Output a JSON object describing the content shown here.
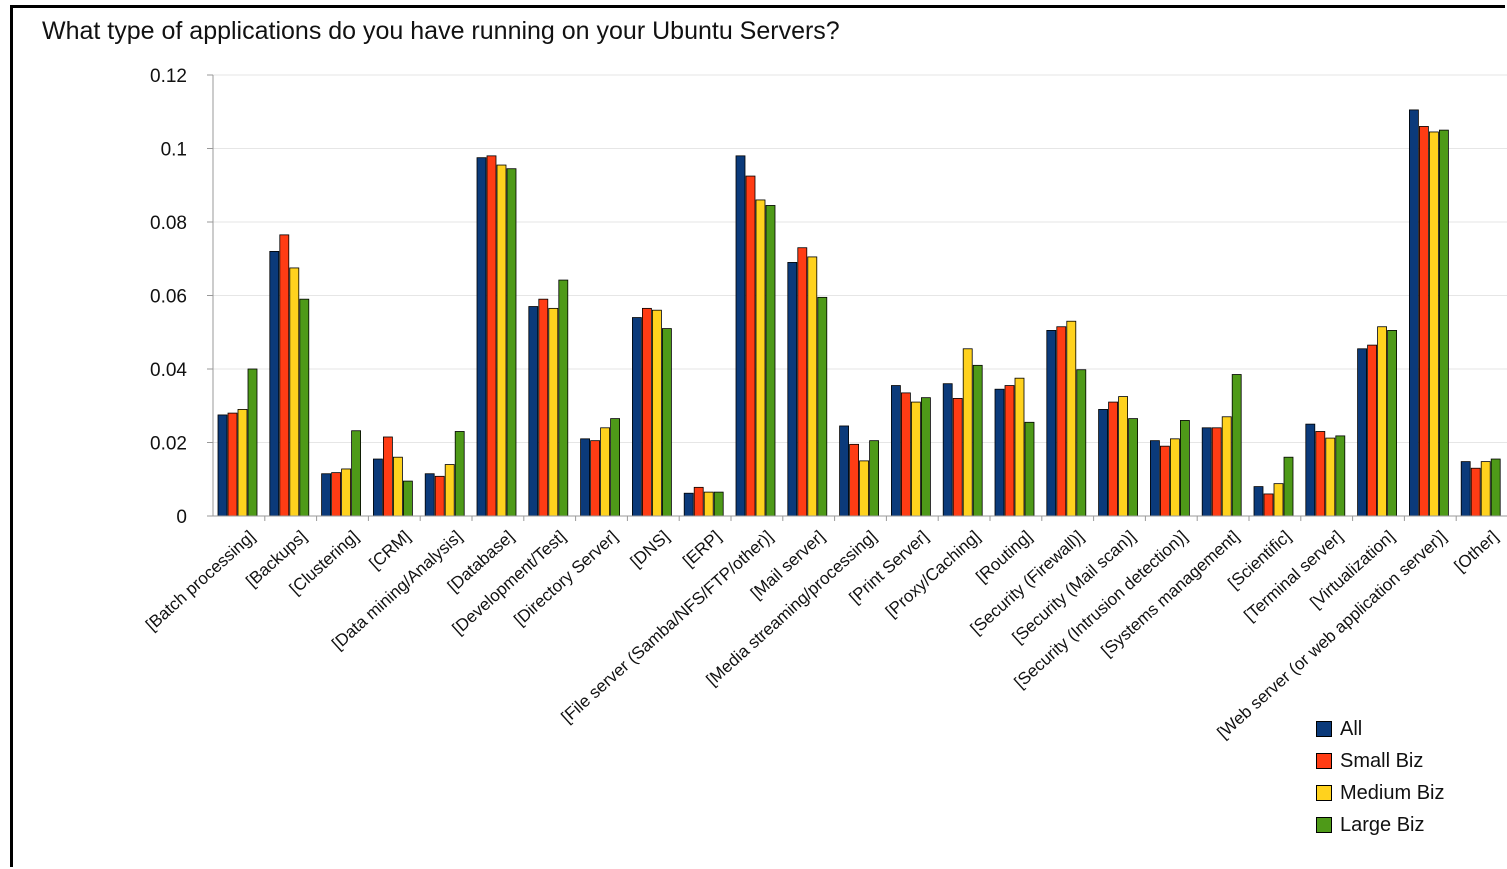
{
  "chart_data": {
    "type": "bar",
    "title": "What type of applications do you have running on your Ubuntu Servers?",
    "xlabel": "",
    "ylabel": "",
    "ylim": [
      0,
      0.12
    ],
    "yticks": [
      "0",
      "0.02",
      "0.04",
      "0.06",
      "0.08",
      "0.1",
      "0.12"
    ],
    "grid": true,
    "legend_position": "bottom-right",
    "categories": [
      "[Batch processing]",
      "[Backups]",
      "[Clustering]",
      "[CRM]",
      "[Data mining/Analysis]",
      "[Database]",
      "[Development/Test]",
      "[Directory Server]",
      "[DNS]",
      "[ERP]",
      "[File server (Samba/NFS/FTP/other)]",
      "[Mail server]",
      "[Media streaming/processing]",
      "[Print Server]",
      "[Proxy/Caching]",
      "[Routing]",
      "[Security (Firewall)]",
      "[Security (Mail scan)]",
      "[Security (Intrusion detection)]",
      "[Systems management]",
      "[Scientific]",
      "[Terminal server]",
      "[Virtualization]",
      "[Web server (or web application server)]",
      "[Other]"
    ],
    "series": [
      {
        "name": "All",
        "color": "#0b3a7a",
        "values": [
          0.0275,
          0.072,
          0.0115,
          0.0155,
          0.0115,
          0.0975,
          0.057,
          0.021,
          0.054,
          0.0062,
          0.098,
          0.069,
          0.0245,
          0.0355,
          0.036,
          0.0345,
          0.0505,
          0.029,
          0.0205,
          0.024,
          0.008,
          0.025,
          0.0455,
          0.1105,
          0.0148
        ]
      },
      {
        "name": "Small Biz",
        "color": "#ff3c14",
        "values": [
          0.028,
          0.0765,
          0.0118,
          0.0215,
          0.0108,
          0.098,
          0.059,
          0.0205,
          0.0565,
          0.0078,
          0.0925,
          0.073,
          0.0195,
          0.0335,
          0.032,
          0.0355,
          0.0515,
          0.031,
          0.019,
          0.024,
          0.006,
          0.023,
          0.0465,
          0.106,
          0.013
        ]
      },
      {
        "name": "Medium Biz",
        "color": "#ffd21e",
        "values": [
          0.029,
          0.0675,
          0.0128,
          0.016,
          0.014,
          0.0955,
          0.0565,
          0.024,
          0.056,
          0.0065,
          0.086,
          0.0705,
          0.015,
          0.031,
          0.0455,
          0.0375,
          0.053,
          0.0325,
          0.021,
          0.027,
          0.0088,
          0.0212,
          0.0515,
          0.1045,
          0.0148
        ]
      },
      {
        "name": "Large Biz",
        "color": "#4e9a18",
        "values": [
          0.04,
          0.059,
          0.0232,
          0.0095,
          0.023,
          0.0945,
          0.0642,
          0.0265,
          0.051,
          0.0065,
          0.0845,
          0.0595,
          0.0205,
          0.0322,
          0.041,
          0.0255,
          0.0398,
          0.0265,
          0.026,
          0.0385,
          0.016,
          0.0218,
          0.0505,
          0.105,
          0.0155
        ]
      }
    ]
  }
}
